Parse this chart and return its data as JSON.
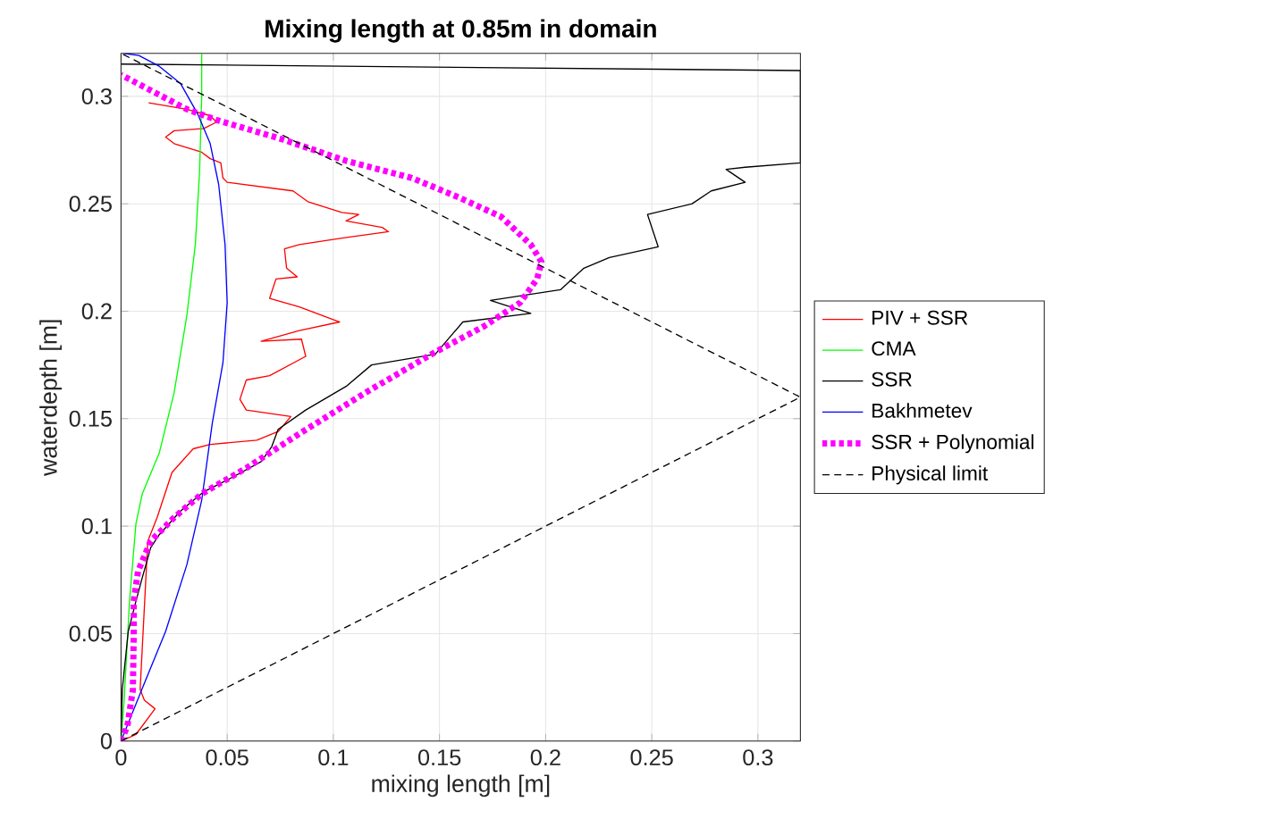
{
  "chart_data": {
    "type": "line",
    "title": "Mixing length at 0.85m in domain",
    "xlabel": "mixing length [m]",
    "ylabel": "waterdepth [m]",
    "xlim": [
      0,
      0.32
    ],
    "ylim": [
      0,
      0.32
    ],
    "xticks": [
      0,
      0.05,
      0.1,
      0.15,
      0.2,
      0.25,
      0.3
    ],
    "yticks": [
      0,
      0.05,
      0.1,
      0.15,
      0.2,
      0.25,
      0.3
    ],
    "grid": true,
    "legend": "right",
    "series": [
      {
        "name": "PIV + SSR",
        "color": "#ff0000",
        "line_style": "solid",
        "x": [
          0,
          0.007,
          0.016,
          0.011,
          0.009,
          0.0126,
          0.017,
          0.024,
          0.034,
          0.042,
          0.064,
          0.074,
          0.08,
          0.059,
          0.056,
          0.059,
          0.07,
          0.087,
          0.085,
          0.066,
          0.084,
          0.103,
          0.084,
          0.07,
          0.073,
          0.083,
          0.078,
          0.077,
          0.084,
          0.104,
          0.126,
          0.123,
          0.106,
          0.112,
          0.104,
          0.088,
          0.081,
          0.05,
          0.048,
          0.047,
          0.042,
          0.038,
          0.025,
          0.021,
          0.025,
          0.039,
          0.045,
          0.042,
          0.031,
          0.013
        ],
        "values": [
          0,
          0.003,
          0.015,
          0.019,
          0.024,
          0.093,
          0.104,
          0.125,
          0.136,
          0.138,
          0.14,
          0.144,
          0.151,
          0.154,
          0.159,
          0.168,
          0.17,
          0.179,
          0.187,
          0.186,
          0.191,
          0.195,
          0.202,
          0.206,
          0.215,
          0.216,
          0.22,
          0.229,
          0.231,
          0.234,
          0.237,
          0.239,
          0.242,
          0.245,
          0.246,
          0.251,
          0.256,
          0.26,
          0.262,
          0.269,
          0.271,
          0.274,
          0.278,
          0.281,
          0.284,
          0.285,
          0.288,
          0.291,
          0.294,
          0.297
        ]
      },
      {
        "name": "CMA",
        "color": "#00ff00",
        "line_style": "solid",
        "x": [
          0,
          0.0014,
          0.004,
          0.007,
          0.01,
          0.018,
          0.025,
          0.031,
          0.035,
          0.037,
          0.038,
          0.038
        ],
        "values": [
          0,
          0.018,
          0.065,
          0.101,
          0.115,
          0.134,
          0.162,
          0.198,
          0.231,
          0.265,
          0.3,
          0.32
        ]
      },
      {
        "name": "SSR",
        "color": "#000000",
        "line_style": "solid",
        "x": [
          0,
          0.0006,
          0.0034,
          0.007,
          0.01,
          0.014,
          0.018,
          0.028,
          0.039,
          0.053,
          0.066,
          0.071,
          0.074,
          0.087,
          0.106,
          0.118,
          0.148,
          0.161,
          0.193,
          0.174,
          0.207,
          0.218,
          0.23,
          0.253,
          0.248,
          0.269,
          0.278,
          0.294,
          0.285,
          0.294,
          0.32,
          0.32,
          0
        ],
        "values": [
          0,
          0.024,
          0.051,
          0.065,
          0.076,
          0.09,
          0.096,
          0.107,
          0.116,
          0.123,
          0.13,
          0.137,
          0.145,
          0.154,
          0.165,
          0.175,
          0.18,
          0.195,
          0.199,
          0.205,
          0.21,
          0.22,
          0.225,
          0.23,
          0.245,
          0.25,
          0.256,
          0.26,
          0.266,
          0.267,
          0.269,
          0.312,
          0.315
        ]
      },
      {
        "name": "Bakhmetev",
        "color": "#0000ff",
        "line_style": "solid",
        "x": [
          0,
          0.0098,
          0.021,
          0.031,
          0.038,
          0.043,
          0.048,
          0.05,
          0.049,
          0.046,
          0.042,
          0.036,
          0.028,
          0.018,
          0.0084,
          0.0014
        ],
        "values": [
          0,
          0.024,
          0.051,
          0.082,
          0.112,
          0.148,
          0.176,
          0.204,
          0.231,
          0.259,
          0.278,
          0.292,
          0.306,
          0.314,
          0.319,
          0.32
        ]
      },
      {
        "name": "SSR + Polynomial",
        "color": "#ff00ff",
        "line_style": "dotted",
        "x": [
          0,
          0.003,
          0.0056,
          0.006,
          0.006,
          0.008,
          0.014,
          0.025,
          0.038,
          0.059,
          0.084,
          0.115,
          0.148,
          0.171,
          0.188,
          0.196,
          0.198,
          0.193,
          0.179,
          0.159,
          0.137,
          0.106,
          0.076,
          0.045,
          0.031,
          0
        ],
        "values": [
          0,
          0.007,
          0.024,
          0.051,
          0.065,
          0.079,
          0.093,
          0.104,
          0.115,
          0.127,
          0.143,
          0.162,
          0.181,
          0.193,
          0.204,
          0.215,
          0.223,
          0.231,
          0.244,
          0.253,
          0.262,
          0.27,
          0.28,
          0.289,
          0.294,
          0.31
        ]
      },
      {
        "name": "Physical limit",
        "color": "#000000",
        "line_style": "dashed",
        "x": [
          0,
          0.32,
          0
        ],
        "values": [
          0,
          0.16,
          0.32
        ]
      }
    ]
  }
}
